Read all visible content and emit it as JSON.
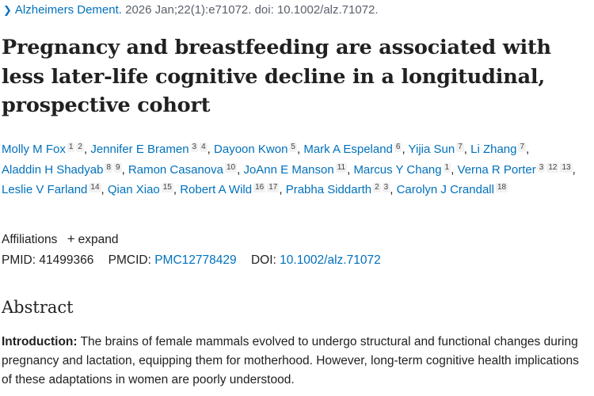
{
  "citation": {
    "journal": "Alzheimers Dement.",
    "details": "2026 Jan;22(1):e71072. doi: 10.1002/alz.71072."
  },
  "title": "Pregnancy and breastfeeding are associated with less later-life cognitive decline in a longitudinal, prospective cohort",
  "authors": [
    {
      "name": "Molly M Fox",
      "affs": [
        "1",
        "2"
      ]
    },
    {
      "name": "Jennifer E Bramen",
      "affs": [
        "3",
        "4"
      ]
    },
    {
      "name": "Dayoon Kwon",
      "affs": [
        "5"
      ]
    },
    {
      "name": "Mark A Espeland",
      "affs": [
        "6"
      ]
    },
    {
      "name": "Yijia Sun",
      "affs": [
        "7"
      ]
    },
    {
      "name": "Li Zhang",
      "affs": [
        "7"
      ]
    },
    {
      "name": "Aladdin H Shadyab",
      "affs": [
        "8",
        "9"
      ]
    },
    {
      "name": "Ramon Casanova",
      "affs": [
        "10"
      ]
    },
    {
      "name": "JoAnn E Manson",
      "affs": [
        "11"
      ]
    },
    {
      "name": "Marcus Y Chang",
      "affs": [
        "1"
      ]
    },
    {
      "name": "Verna R Porter",
      "affs": [
        "3",
        "12",
        "13"
      ]
    },
    {
      "name": "Leslie V Farland",
      "affs": [
        "14"
      ]
    },
    {
      "name": "Qian Xiao",
      "affs": [
        "15"
      ]
    },
    {
      "name": "Robert A Wild",
      "affs": [
        "16",
        "17"
      ]
    },
    {
      "name": "Prabha Siddarth",
      "affs": [
        "2",
        "3"
      ]
    },
    {
      "name": "Carolyn J Crandall",
      "affs": [
        "18"
      ]
    }
  ],
  "affiliations": {
    "label": "Affiliations",
    "expand_label": "expand"
  },
  "identifiers": {
    "pmid_label": "PMID:",
    "pmid": "41499366",
    "pmcid_label": "PMCID:",
    "pmcid": "PMC12778429",
    "doi_label": "DOI:",
    "doi": "10.1002/alz.71072"
  },
  "abstract": {
    "heading": "Abstract",
    "intro_label": "Introduction:",
    "intro_text": "The brains of female mammals evolved to undergo structural and functional changes during pregnancy and lactation, equipping them for motherhood. However, long-term cognitive health implications of these adaptations in women are poorly understood."
  }
}
